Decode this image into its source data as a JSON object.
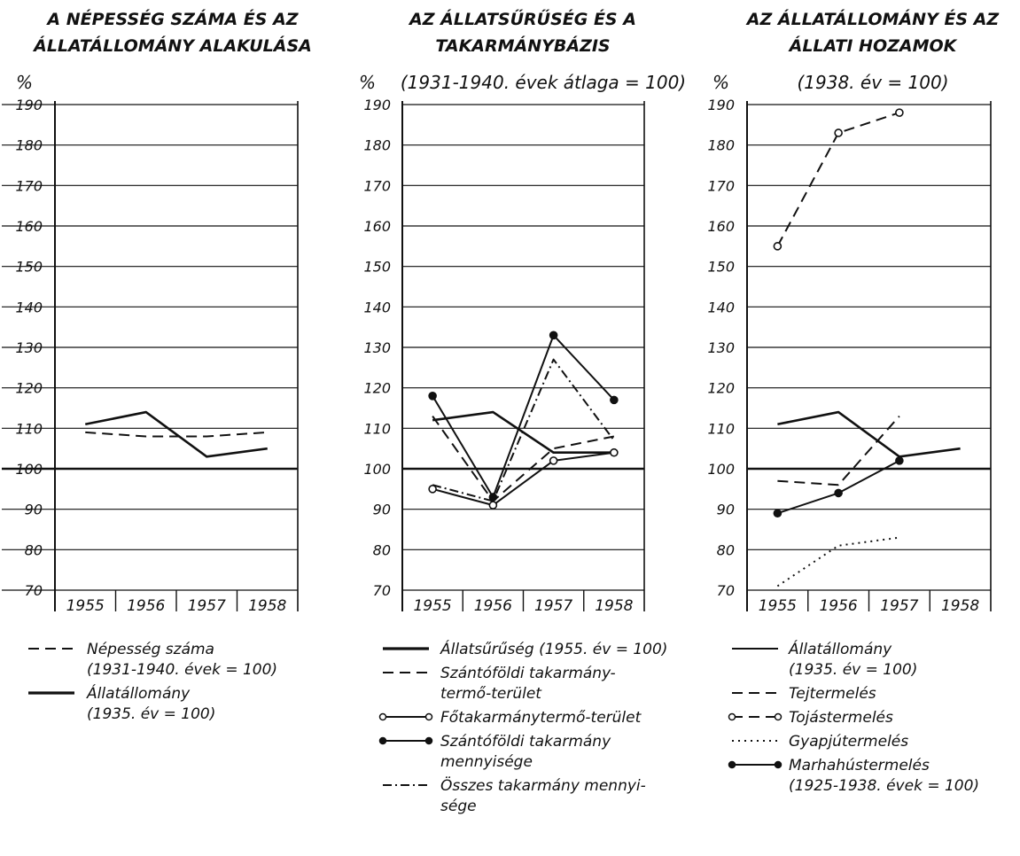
{
  "chart_data": [
    {
      "type": "line",
      "title_lines": [
        "A NÉPESSÉG SZÁMA ÉS AZ",
        "ÁLLATÁLLOMÁNY ALAKULÁSA"
      ],
      "subtitle": "",
      "unit_label": "%",
      "y_ticks": [
        "190",
        "180",
        "170",
        "160",
        "150",
        "140",
        "130",
        "120",
        "110",
        "100",
        "90",
        "80",
        "70"
      ],
      "ylim": [
        70,
        190
      ],
      "categories": [
        "1955",
        "1956",
        "1957",
        "1958"
      ],
      "series": [
        {
          "legend_id": "p1-pop",
          "style": "dashed",
          "values": [
            109,
            108,
            108,
            109
          ]
        },
        {
          "legend_id": "p1-stock",
          "style": "solid",
          "values": [
            111,
            114,
            103,
            105
          ]
        }
      ],
      "legend": [
        {
          "id": "p1-pop",
          "style": "dashed",
          "marker": "none",
          "lines": [
            "Népesség száma",
            "(1931-1940. évek = 100)"
          ]
        },
        {
          "id": "p1-stock",
          "style": "solid-bold",
          "marker": "none",
          "lines": [
            "Állatállomány",
            "(1935. év = 100)"
          ]
        }
      ]
    },
    {
      "type": "line",
      "title_lines": [
        "AZ ÁLLATSŰRŰSÉG ÉS A",
        "TAKARMÁNYBÁZIS"
      ],
      "subtitle": "(1931-1940. évek átlaga = 100)",
      "unit_label": "%",
      "y_ticks": [
        "190",
        "180",
        "170",
        "160",
        "150",
        "140",
        "130",
        "120",
        "110",
        "100",
        "90",
        "80",
        "70"
      ],
      "ylim": [
        70,
        190
      ],
      "categories": [
        "1955",
        "1956",
        "1957",
        "1958"
      ],
      "series": [
        {
          "legend_id": "p2-density",
          "style": "solid",
          "values": [
            112,
            114,
            104,
            104
          ]
        },
        {
          "legend_id": "p2-arable-area",
          "style": "dashed",
          "values": [
            113,
            92,
            105,
            108
          ]
        },
        {
          "legend_id": "p2-main-area",
          "style": "solid",
          "marker": "open",
          "values": [
            95,
            91,
            102,
            104
          ]
        },
        {
          "legend_id": "p2-arable-qty",
          "style": "solid",
          "marker": "filled",
          "values": [
            118,
            93,
            133,
            117
          ]
        },
        {
          "legend_id": "p2-total-qty",
          "style": "dashdot",
          "values": [
            96,
            92,
            127,
            107
          ]
        }
      ],
      "legend": [
        {
          "id": "p2-density",
          "style": "solid-bold",
          "marker": "none",
          "lines": [
            "Állatsűrűség (1955. év = 100)"
          ]
        },
        {
          "id": "p2-arable-area",
          "style": "dashed",
          "marker": "none",
          "lines": [
            "Szántóföldi takarmány-",
            "termő-terület"
          ]
        },
        {
          "id": "p2-main-area",
          "style": "solid",
          "marker": "open",
          "lines": [
            "Főtakarmánytermő-terület"
          ]
        },
        {
          "id": "p2-arable-qty",
          "style": "solid",
          "marker": "filled",
          "lines": [
            "Szántóföldi takarmány",
            "mennyisége"
          ]
        },
        {
          "id": "p2-total-qty",
          "style": "dashdot",
          "marker": "none",
          "lines": [
            "Összes takarmány mennyi-",
            "sége"
          ]
        }
      ]
    },
    {
      "type": "line",
      "title_lines": [
        "AZ ÁLLATÁLLOMÁNY ÉS AZ",
        "ÁLLATI HOZAMOK"
      ],
      "subtitle": "(1938. év = 100)",
      "unit_label": "%",
      "y_ticks": [
        "190",
        "180",
        "170",
        "160",
        "150",
        "140",
        "130",
        "120",
        "110",
        "100",
        "90",
        "80",
        "70"
      ],
      "ylim": [
        70,
        190
      ],
      "categories": [
        "1955",
        "1956",
        "1957",
        "1958"
      ],
      "series": [
        {
          "legend_id": "p3-stock",
          "style": "solid",
          "values": [
            111,
            114,
            103,
            105
          ]
        },
        {
          "legend_id": "p3-milk",
          "style": "dashed",
          "values": [
            97,
            96,
            113,
            null
          ]
        },
        {
          "legend_id": "p3-eggs",
          "style": "dashed",
          "marker": "open",
          "values": [
            155,
            183,
            188,
            null
          ]
        },
        {
          "legend_id": "p3-wool",
          "style": "dotted",
          "values": [
            71,
            81,
            83,
            null
          ]
        },
        {
          "legend_id": "p3-beef",
          "style": "solid",
          "marker": "filled",
          "values": [
            89,
            94,
            102,
            null
          ]
        }
      ],
      "legend": [
        {
          "id": "p3-stock",
          "style": "solid",
          "marker": "none",
          "lines": [
            "Állatállomány",
            "(1935. év = 100)"
          ]
        },
        {
          "id": "p3-milk",
          "style": "dashed",
          "marker": "none",
          "lines": [
            "Tejtermelés"
          ]
        },
        {
          "id": "p3-eggs",
          "style": "dashed",
          "marker": "open",
          "lines": [
            "Tojástermelés"
          ]
        },
        {
          "id": "p3-wool",
          "style": "dotted",
          "marker": "none",
          "lines": [
            "Gyapjútermelés"
          ]
        },
        {
          "id": "p3-beef",
          "style": "solid",
          "marker": "filled",
          "lines": [
            "Marhahústermelés",
            "(1925-1938. évek = 100)"
          ]
        }
      ]
    }
  ]
}
